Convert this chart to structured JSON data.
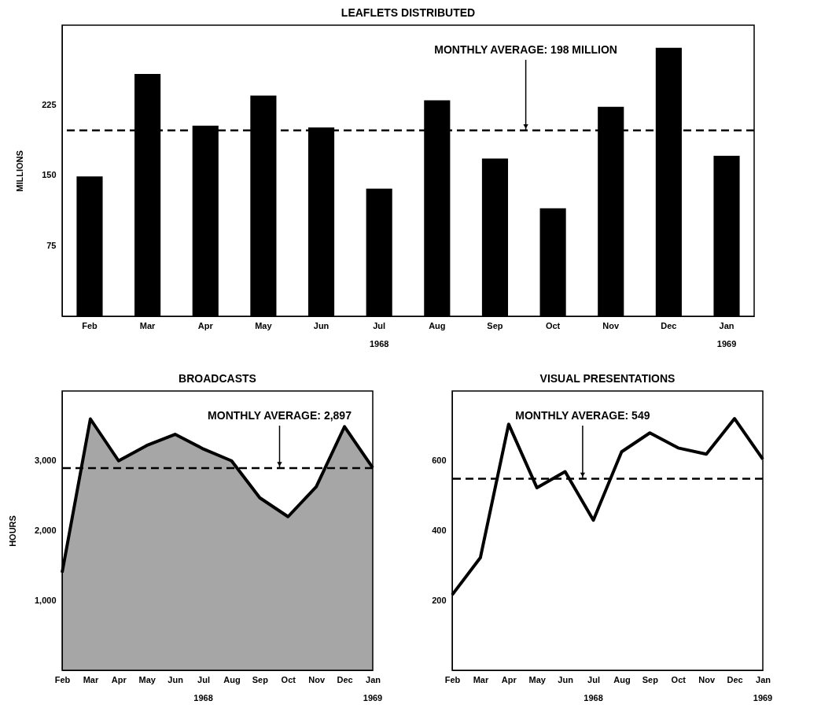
{
  "chart_data": [
    {
      "type": "bar",
      "title": "LEAFLETS DISTRIBUTED",
      "ylabel": "MILLIONS",
      "categories": [
        "Feb",
        "Mar",
        "Apr",
        "May",
        "Jun",
        "Jul",
        "Aug",
        "Sep",
        "Oct",
        "Nov",
        "Dec",
        "Jan"
      ],
      "values": [
        149,
        258,
        203,
        235,
        201,
        136,
        230,
        168,
        115,
        223,
        286,
        171
      ],
      "color": "#000000",
      "ylim": [
        0,
        310
      ],
      "yticks": [
        75,
        150,
        225
      ],
      "ref_lines": [
        {
          "axis": "y",
          "value": 198,
          "label": "MONTHLY AVERAGE: 198 MILLION",
          "line_style": "dashed",
          "color": "#000000"
        }
      ],
      "annotations": [
        "1968",
        "1969"
      ]
    },
    {
      "type": "area",
      "title": "BROADCASTS",
      "ylabel": "HOURS",
      "categories": [
        "Feb",
        "Mar",
        "Apr",
        "May",
        "Jun",
        "Jul",
        "Aug",
        "Sep",
        "Oct",
        "Nov",
        "Dec",
        "Jan"
      ],
      "values": [
        1400,
        3600,
        3000,
        3220,
        3380,
        3170,
        3000,
        2470,
        2200,
        2630,
        3490,
        2900
      ],
      "color": "#000000",
      "ylim": [
        0,
        4000
      ],
      "yticks": [
        {
          "value": 1000,
          "label": "1,000"
        },
        {
          "value": 2000,
          "label": "2,000"
        },
        {
          "value": 3000,
          "label": "3,000"
        }
      ],
      "ref_lines": [
        {
          "axis": "y",
          "value": 2897,
          "label": "MONTHLY AVERAGE: 2,897",
          "line_style": "dashed",
          "color": "#000000"
        }
      ],
      "annotations": [
        "1968",
        "1969"
      ]
    },
    {
      "type": "line",
      "title": "VISUAL PRESENTATIONS",
      "categories": [
        "Feb",
        "Mar",
        "Apr",
        "May",
        "Jun",
        "Jul",
        "Aug",
        "Sep",
        "Oct",
        "Nov",
        "Dec",
        "Jan"
      ],
      "values": [
        216,
        323,
        705,
        523,
        569,
        430,
        626,
        680,
        637,
        619,
        721,
        605
      ],
      "color": "#000000",
      "ylim": [
        0,
        800
      ],
      "yticks": [
        200,
        400,
        600
      ],
      "ref_lines": [
        {
          "axis": "y",
          "value": 549,
          "label": "MONTHLY AVERAGE: 549",
          "line_style": "dashed",
          "color": "#000000"
        }
      ],
      "annotations": [
        "1968",
        "1969"
      ]
    }
  ]
}
